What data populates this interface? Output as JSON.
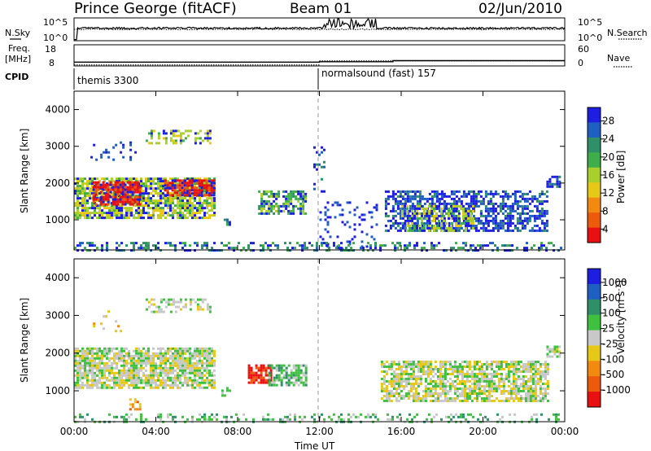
{
  "header": {
    "title": "Prince George (fitACF)",
    "beam": "Beam 01",
    "date": "02/Jun/2010"
  },
  "noise_panel": {
    "left_label": "N.Sky",
    "right_label": "N.Search",
    "ytick_top": "10^5",
    "ytick_bottom": "10^0",
    "rtick_top": "10^5",
    "rtick_bottom": "10^0"
  },
  "freq_panel": {
    "left_label_1": "Freq.",
    "left_label_2": "[MHz]",
    "right_label": "Nave",
    "ytick_top": "18",
    "ytick_bottom": "8",
    "rtick_top": "60",
    "rtick_bottom": "0"
  },
  "cpid": {
    "label": "CPID",
    "mode_1": "themis 3300",
    "mode_2": "normalsound (fast) 157"
  },
  "colors": {
    "power": [
      "#1e1ee0",
      "#1f5fc2",
      "#2f8f68",
      "#3fae4a",
      "#a8cf2e",
      "#e8c817",
      "#f28a12",
      "#ec5a0c",
      "#e81010"
    ],
    "velocity": [
      "#1e1ee0",
      "#1f5fc2",
      "#2f8f68",
      "#40c040",
      "#c8c8c8",
      "#e8c817",
      "#f28a12",
      "#ec5a0c",
      "#e81010"
    ],
    "ground_scatter": "#c8c8c8"
  },
  "chart_data": [
    {
      "type": "heatmap",
      "title": "Power",
      "xlabel": "",
      "ylabel": "Slant Range [km]",
      "ylim": [
        180,
        4500
      ],
      "yticks": [
        "1000",
        "2000",
        "3000",
        "4000"
      ],
      "xticks": [
        "00:00",
        "04:00",
        "08:00",
        "12:00",
        "16:00",
        "20:00",
        "00:00"
      ],
      "colorbar": {
        "label": "Power [dB]",
        "ticks": [
          "28",
          "24",
          "20",
          "16",
          "12",
          "8",
          "4"
        ],
        "range": [
          0,
          30
        ]
      },
      "regions": [
        {
          "t0": 0.0,
          "t1": 6.9,
          "r0": 1050,
          "r1": 2150,
          "level": 4,
          "density": 0.78
        },
        {
          "t0": 0.9,
          "t1": 3.2,
          "r0": 1450,
          "r1": 2050,
          "level": 8,
          "density": 0.85
        },
        {
          "t0": 4.4,
          "t1": 6.8,
          "r0": 1650,
          "r1": 2100,
          "level": 8,
          "density": 0.85
        },
        {
          "t0": 3.5,
          "t1": 6.7,
          "r0": 3100,
          "r1": 3450,
          "level": 4,
          "density": 0.45
        },
        {
          "t0": 0.8,
          "t1": 3.0,
          "r0": 2600,
          "r1": 3200,
          "level": 0,
          "density": 0.12
        },
        {
          "t0": 7.2,
          "t1": 7.6,
          "r0": 900,
          "r1": 1100,
          "level": 2,
          "density": 0.6
        },
        {
          "t0": 9.0,
          "t1": 11.3,
          "r0": 1150,
          "r1": 1800,
          "level": 3,
          "density": 0.65
        },
        {
          "t0": 11.7,
          "t1": 12.2,
          "r0": 1800,
          "r1": 3000,
          "level": 1,
          "density": 0.25
        },
        {
          "t0": 12.0,
          "t1": 14.8,
          "r0": 200,
          "r1": 1500,
          "level": 0,
          "density": 0.12
        },
        {
          "t0": 15.2,
          "t1": 23.2,
          "r0": 700,
          "r1": 1800,
          "level": 1,
          "density": 0.6
        },
        {
          "t0": 16.0,
          "t1": 19.5,
          "r0": 700,
          "r1": 1400,
          "level": 4,
          "density": 0.55
        },
        {
          "t0": 23.1,
          "t1": 23.8,
          "r0": 1900,
          "r1": 2200,
          "level": 1,
          "density": 0.7
        },
        {
          "t0": 0.0,
          "t1": 23.8,
          "r0": 190,
          "r1": 400,
          "level": 2,
          "density": 0.35
        }
      ]
    },
    {
      "type": "heatmap",
      "title": "Velocity",
      "xlabel": "Time UT",
      "ylabel": "Slant Range [km]",
      "ylim": [
        180,
        4500
      ],
      "yticks": [
        "1000",
        "2000",
        "3000",
        "4000"
      ],
      "xticks": [
        "00:00",
        "04:00",
        "08:00",
        "12:00",
        "16:00",
        "20:00",
        "00:00"
      ],
      "colorbar": {
        "label": "Velocity [m s^-1]",
        "ticks": [
          "1000",
          "500",
          "100",
          "25",
          "-25",
          "-100",
          "-500",
          "-1000"
        ],
        "range": [
          -1000,
          1000
        ]
      },
      "regions": [
        {
          "t0": 0.0,
          "t1": 6.9,
          "r0": 1050,
          "r1": 2150,
          "level": 4,
          "density": 0.82
        },
        {
          "t0": 3.5,
          "t1": 6.7,
          "r0": 3100,
          "r1": 3450,
          "level": 4,
          "density": 0.45
        },
        {
          "t0": 0.8,
          "t1": 3.0,
          "r0": 2600,
          "r1": 3200,
          "level": 5,
          "density": 0.08
        },
        {
          "t0": 7.2,
          "t1": 7.6,
          "r0": 900,
          "r1": 1100,
          "level": 3,
          "density": 0.6
        },
        {
          "t0": 8.5,
          "t1": 9.6,
          "r0": 1200,
          "r1": 1700,
          "level": 8,
          "density": 0.8
        },
        {
          "t0": 9.5,
          "t1": 11.3,
          "r0": 1150,
          "r1": 1700,
          "level": 3,
          "density": 0.7
        },
        {
          "t0": 2.7,
          "t1": 3.2,
          "r0": 500,
          "r1": 800,
          "level": 6,
          "density": 0.45
        },
        {
          "t0": 15.0,
          "t1": 23.2,
          "r0": 700,
          "r1": 1800,
          "level": 4,
          "density": 0.72
        },
        {
          "t0": 23.1,
          "t1": 23.8,
          "r0": 1900,
          "r1": 2200,
          "level": 4,
          "density": 0.7
        },
        {
          "t0": 0.0,
          "t1": 23.8,
          "r0": 190,
          "r1": 400,
          "level": 3,
          "density": 0.3
        }
      ]
    },
    {
      "type": "line",
      "title": "N.Sky / N.Search",
      "x_range_hours": [
        0,
        24
      ],
      "sky_level": 0.55,
      "search_level": 0.5,
      "burst": {
        "t0": 12.2,
        "t1": 14.8,
        "peak": 1.0
      }
    },
    {
      "type": "line",
      "title": "Freq / Nave",
      "x_range_hours": [
        0,
        24
      ],
      "freq_segments": [
        [
          0.0,
          12.0,
          9.8
        ],
        [
          12.0,
          15.6,
          10.0
        ],
        [
          15.6,
          24.0,
          10.5
        ]
      ],
      "nave_level_top": 12
    }
  ]
}
